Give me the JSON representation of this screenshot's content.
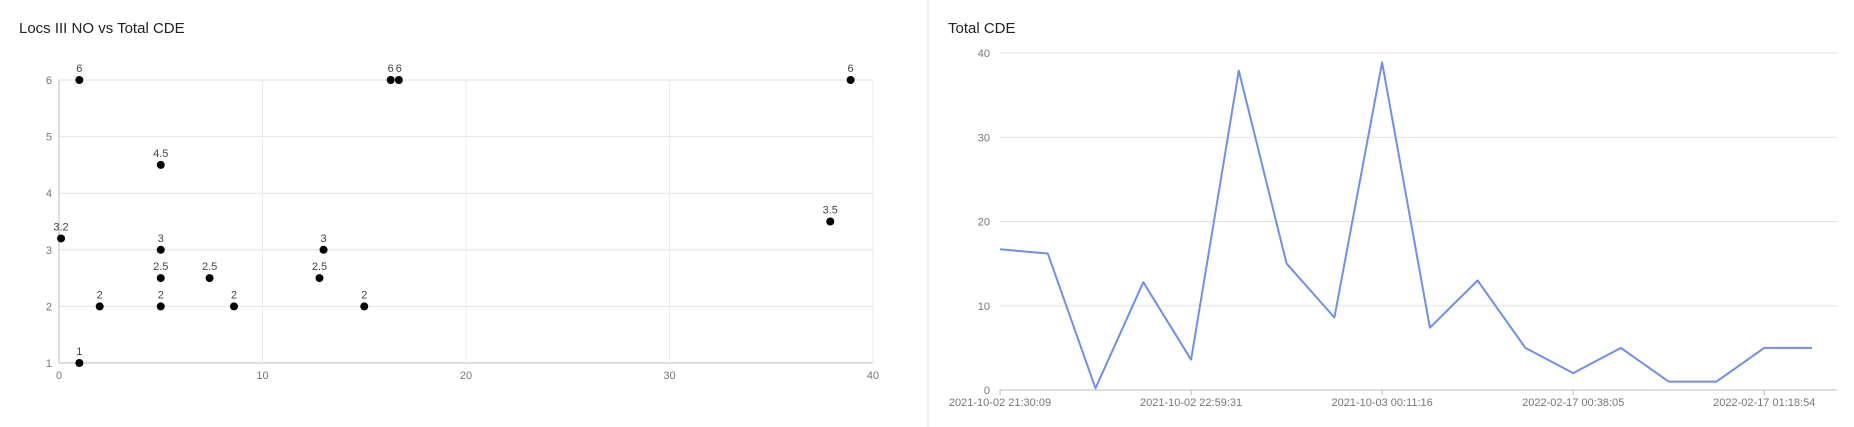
{
  "charts": {
    "scatter_title": "Locs III NO vs Total CDE",
    "line_title": "Total CDE"
  },
  "chart_data": [
    {
      "type": "scatter",
      "title": "Locs III NO vs Total CDE",
      "xlabel": "",
      "ylabel": "",
      "xlim": [
        0,
        40
      ],
      "ylim": [
        1,
        6
      ],
      "x_ticks": [
        0,
        10,
        20,
        30,
        40
      ],
      "y_ticks": [
        1,
        2,
        3,
        4,
        5,
        6
      ],
      "grid": true,
      "marker_color": "#000000",
      "points": [
        {
          "x": 1.0,
          "y": 6,
          "label": "6"
        },
        {
          "x": 16.3,
          "y": 6,
          "label": "6"
        },
        {
          "x": 16.7,
          "y": 6,
          "label": "6"
        },
        {
          "x": 38.9,
          "y": 6,
          "label": "6"
        },
        {
          "x": 5.0,
          "y": 4.5,
          "label": "4.5"
        },
        {
          "x": 37.9,
          "y": 3.5,
          "label": "3.5"
        },
        {
          "x": 0.1,
          "y": 3.2,
          "label": "3.2"
        },
        {
          "x": 5.0,
          "y": 3,
          "label": "3"
        },
        {
          "x": 13.0,
          "y": 3,
          "label": "3"
        },
        {
          "x": 5.0,
          "y": 2.5,
          "label": "2.5"
        },
        {
          "x": 7.4,
          "y": 2.5,
          "label": "2.5"
        },
        {
          "x": 12.8,
          "y": 2.5,
          "label": "2.5"
        },
        {
          "x": 2.0,
          "y": 2,
          "label": "2"
        },
        {
          "x": 5.0,
          "y": 2,
          "label": "2"
        },
        {
          "x": 8.6,
          "y": 2,
          "label": "2"
        },
        {
          "x": 15.0,
          "y": 2,
          "label": "2"
        },
        {
          "x": 1.0,
          "y": 1,
          "label": "1"
        }
      ]
    },
    {
      "type": "line",
      "title": "Total CDE",
      "xlabel": "",
      "ylabel": "",
      "ylim": [
        0,
        40
      ],
      "y_ticks": [
        0,
        10,
        20,
        30,
        40
      ],
      "grid": true,
      "line_color": "#6e8ff0",
      "x_tick_labels": [
        {
          "index": 0,
          "label": "2021-10-02 21:30:09"
        },
        {
          "index": 4,
          "label": "2021-10-02 22:59:31"
        },
        {
          "index": 8,
          "label": "2021-10-03 00:11:16"
        },
        {
          "index": 12,
          "label": "2022-02-17 00:38:05"
        },
        {
          "index": 16,
          "label": "2022-02-17 01:18:54"
        }
      ],
      "values": [
        16.7,
        16.2,
        0.2,
        12.8,
        3.6,
        37.9,
        15.0,
        8.6,
        38.9,
        7.4,
        13.0,
        5.0,
        2.0,
        5.0,
        1.0,
        1.0,
        5.0,
        5.0
      ]
    }
  ]
}
